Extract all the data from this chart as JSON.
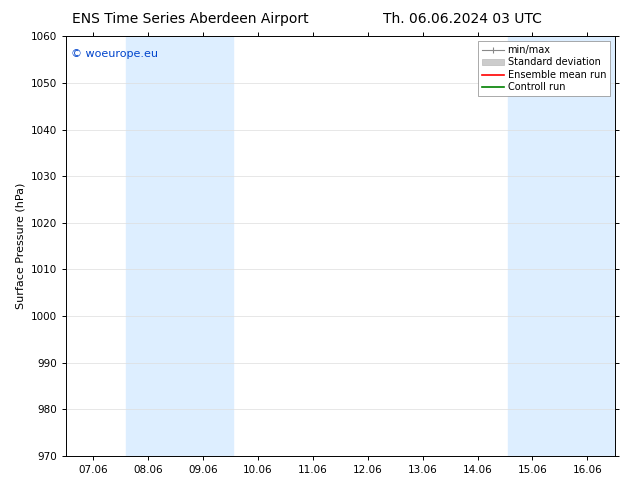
{
  "title_left": "ENS Time Series Aberdeen Airport",
  "title_right": "Th. 06.06.2024 03 UTC",
  "ylabel": "Surface Pressure (hPa)",
  "ylim": [
    970,
    1060
  ],
  "yticks": [
    970,
    980,
    990,
    1000,
    1010,
    1020,
    1030,
    1040,
    1050,
    1060
  ],
  "xtick_labels": [
    "07.06",
    "08.06",
    "09.06",
    "10.06",
    "11.06",
    "12.06",
    "13.06",
    "14.06",
    "15.06",
    "16.06"
  ],
  "shaded_bands": [
    {
      "xstart": 1,
      "xend": 2
    },
    {
      "xstart": 7,
      "xend": 8
    }
  ],
  "shaded_color": "#ddeeff",
  "watermark": "© woeurope.eu",
  "watermark_color": "#0044cc",
  "legend_entries": [
    {
      "label": "min/max"
    },
    {
      "label": "Standard deviation"
    },
    {
      "label": "Ensemble mean run",
      "color": "red"
    },
    {
      "label": "Controll run",
      "color": "green"
    }
  ],
  "background_color": "#ffffff",
  "grid_color": "#dddddd",
  "title_fontsize": 10,
  "axis_fontsize": 8,
  "tick_fontsize": 7.5,
  "legend_fontsize": 7
}
